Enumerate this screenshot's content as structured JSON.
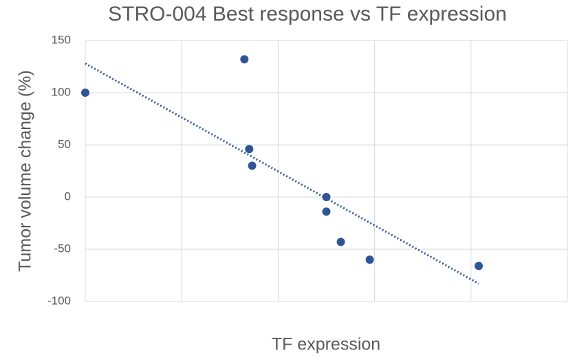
{
  "chart_data": {
    "type": "scatter",
    "title": "STRO-004 Best response vs TF expression",
    "x_label": "TF expression",
    "y_label": "Tumor volume change (%)",
    "x": [
      0,
      1.65,
      1.7,
      1.73,
      2.5,
      2.5,
      2.65,
      2.95,
      4.08
    ],
    "values": [
      100,
      132,
      46,
      30,
      0,
      -14,
      -43,
      -60,
      -66
    ],
    "color": "#2f5597",
    "trendline": {
      "x": [
        0,
        4.08
      ],
      "values": [
        128,
        -83
      ],
      "color": "#2f5597"
    },
    "xlim": [
      0,
      5
    ],
    "xticks": [
      0,
      1,
      2,
      3,
      4,
      5
    ],
    "ylim": [
      -100,
      150
    ],
    "yticks": [
      -100,
      -50,
      0,
      50,
      100,
      150
    ],
    "grid": true
  }
}
